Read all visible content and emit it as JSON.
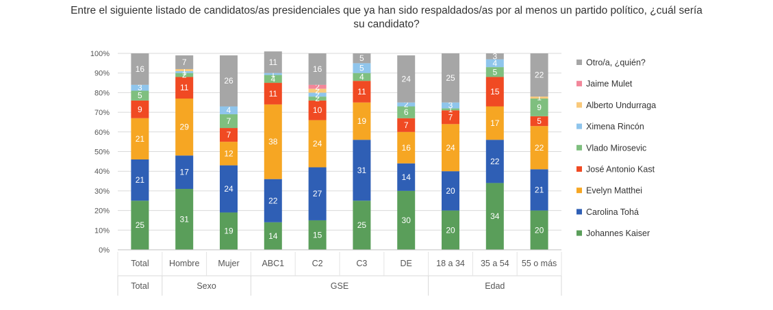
{
  "chart_data": {
    "type": "bar",
    "stacked": true,
    "title": "Entre el siguiente listado de candidatos/as presidenciales que ya han sido respaldados/as por al menos un partido político, ¿cuál sería\nsu candidato?",
    "categories": [
      "Total",
      "Hombre",
      "Mujer",
      "ABC1",
      "C2",
      "C3",
      "DE",
      "18 a 34",
      "35 a 54",
      "55 o más"
    ],
    "groups": [
      {
        "name": "Total",
        "count": 1
      },
      {
        "name": "Sexo",
        "count": 2
      },
      {
        "name": "GSE",
        "count": 4
      },
      {
        "name": "Edad",
        "count": 3
      }
    ],
    "ylim": [
      0,
      100
    ],
    "yticks": [
      "0%",
      "10%",
      "20%",
      "30%",
      "40%",
      "50%",
      "60%",
      "70%",
      "80%",
      "90%",
      "100%"
    ],
    "grid": true,
    "legend_position": "right",
    "series": [
      {
        "name": "Johannes Kaiser",
        "color": "#5a9e5a",
        "values": [
          25,
          31,
          19,
          14,
          15,
          25,
          30,
          20,
          34,
          20
        ]
      },
      {
        "name": "Carolina Tohá",
        "color": "#2f5fb5",
        "values": [
          21,
          17,
          24,
          22,
          27,
          31,
          14,
          20,
          22,
          21
        ]
      },
      {
        "name": "Evelyn Matthei",
        "color": "#f6a623",
        "values": [
          21,
          29,
          12,
          38,
          24,
          19,
          16,
          24,
          17,
          22
        ]
      },
      {
        "name": "José Antonio Kast",
        "color": "#f04a23",
        "values": [
          9,
          11,
          7,
          11,
          10,
          11,
          7,
          7,
          15,
          5
        ]
      },
      {
        "name": "Vlado Mirosevic",
        "color": "#7fbf7f",
        "values": [
          5,
          2,
          7,
          4,
          2,
          4,
          6,
          1,
          5,
          9
        ]
      },
      {
        "name": "Ximena Rincón",
        "color": "#8fc5ec",
        "values": [
          3,
          1,
          4,
          1,
          2,
          5,
          2,
          3,
          4,
          0
        ]
      },
      {
        "name": "Alberto Undurraga",
        "color": "#f9c97a",
        "values": [
          0,
          1,
          0,
          0,
          2,
          0,
          0,
          0,
          0,
          1
        ]
      },
      {
        "name": "Jaime Mulet",
        "color": "#f2879a",
        "values": [
          0,
          0,
          0,
          0,
          2,
          0,
          0,
          0,
          0,
          0
        ]
      },
      {
        "name": "Otro/a, ¿quién?",
        "color": "#a6a6a6",
        "values": [
          16,
          7,
          26,
          11,
          16,
          5,
          24,
          25,
          3,
          22
        ]
      }
    ],
    "legend_order": [
      "Otro/a, ¿quién?",
      "Jaime Mulet",
      "Alberto Undurraga",
      "Ximena Rincón",
      "Vlado Mirosevic",
      "José Antonio Kast",
      "Evelyn Matthei",
      "Carolina Tohá",
      "Johannes Kaiser"
    ]
  }
}
